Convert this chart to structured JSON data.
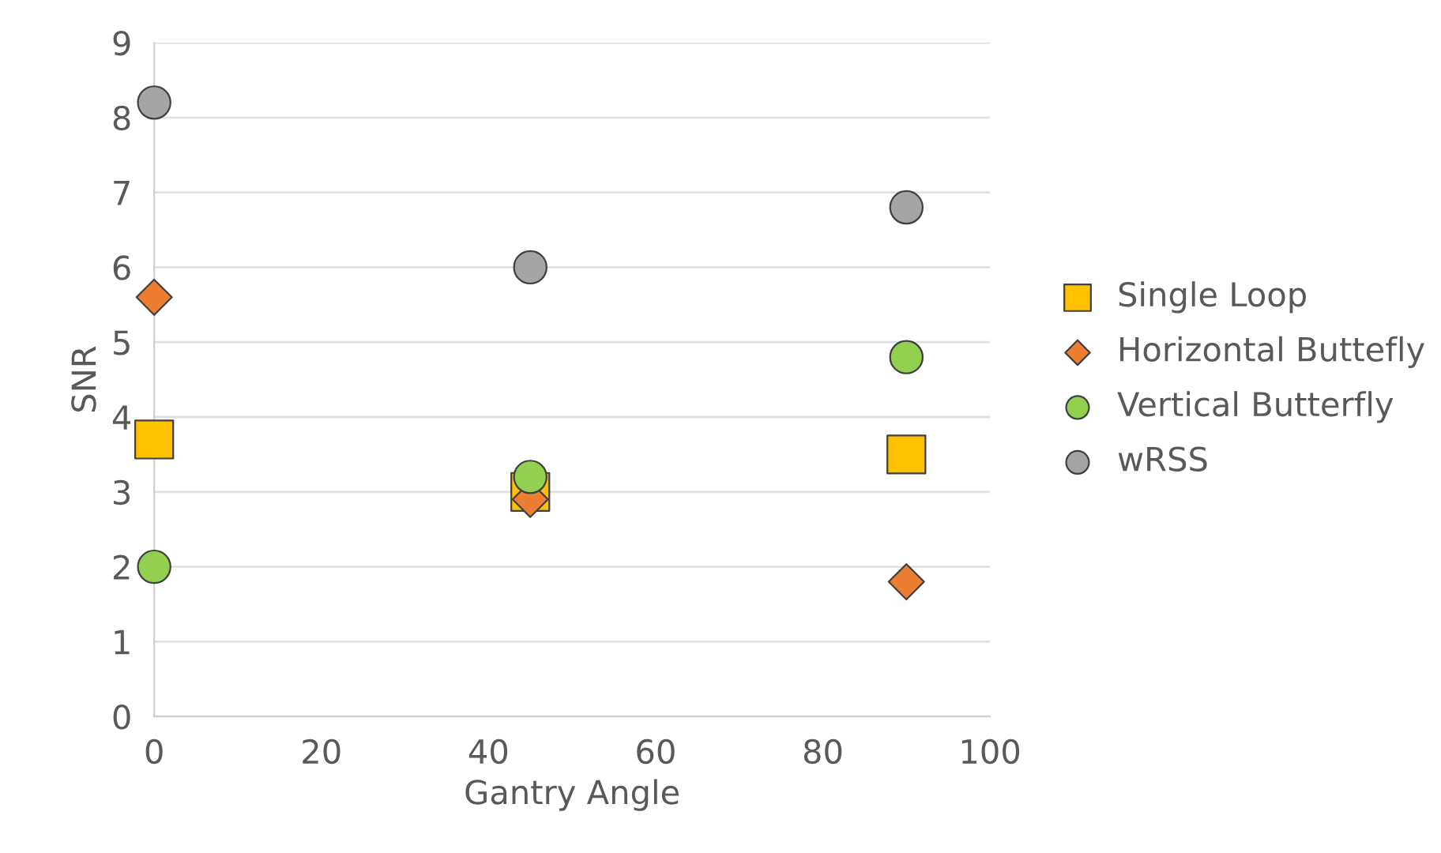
{
  "chart_data": {
    "type": "scatter",
    "xlabel": "Gantry Angle",
    "ylabel": "SNR",
    "xlim": [
      0,
      100
    ],
    "xticks": [
      0,
      20,
      40,
      60,
      80,
      100
    ],
    "ylim": [
      0,
      9
    ],
    "yticks": [
      0,
      1,
      2,
      3,
      4,
      5,
      6,
      7,
      8,
      9
    ],
    "grid": "y",
    "legend": "right",
    "x": [
      0,
      45,
      90
    ],
    "series": [
      {
        "name": "Single Loop",
        "color": "#ffc000",
        "marker": "square",
        "values": [
          3.7,
          3.0,
          3.5
        ]
      },
      {
        "name": "Horizontal Buttefly",
        "color": "#ed7d31",
        "marker": "diamond",
        "values": [
          5.6,
          2.9,
          1.8
        ]
      },
      {
        "name": "Vertical Butterfly",
        "color": "#92d050",
        "marker": "circle",
        "values": [
          2.0,
          3.2,
          4.8
        ]
      },
      {
        "name": "wRSS",
        "color": "#a5a5a5",
        "marker": "circle",
        "values": [
          8.2,
          6.0,
          6.8
        ]
      }
    ]
  }
}
